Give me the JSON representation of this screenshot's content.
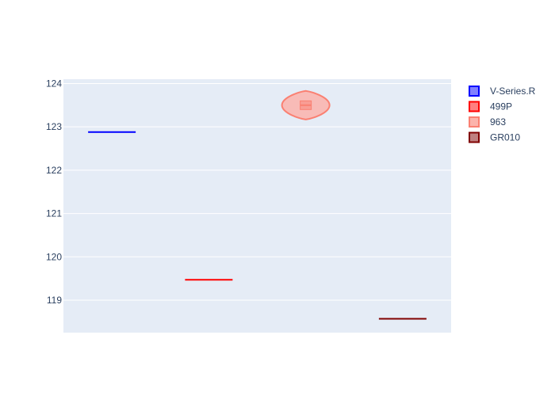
{
  "chart_data": {
    "type": "violin",
    "title": "",
    "xlabel": "",
    "ylabel": "",
    "ylim": [
      118.25,
      124.1
    ],
    "yticks": [
      119,
      120,
      121,
      122,
      123,
      124
    ],
    "grid": true,
    "legend_position": "top-right",
    "series": [
      {
        "name": "V-Series.R",
        "color": "#0000ff",
        "fill": "#8080ff",
        "values": [
          122.88
        ],
        "spread": 0.0
      },
      {
        "name": "499P",
        "color": "#ff0000",
        "fill": "#ff8080",
        "values": [
          119.47
        ],
        "spread": 0.0
      },
      {
        "name": "963",
        "color": "#fa8072",
        "fill": "#fcb3ab",
        "values": [
          123.18,
          123.4,
          123.5,
          123.6,
          123.82
        ],
        "spread": 0.33
      },
      {
        "name": "GR010",
        "color": "#800000",
        "fill": "#bf8080",
        "values": [
          118.57
        ],
        "spread": 0.0
      }
    ]
  }
}
